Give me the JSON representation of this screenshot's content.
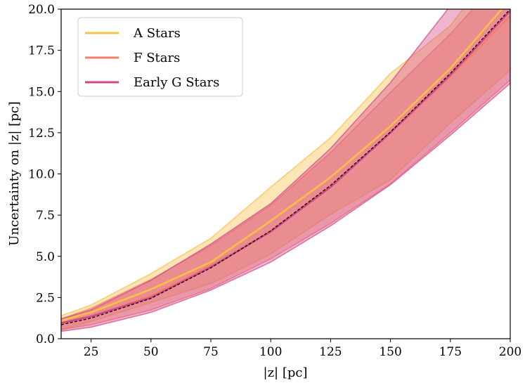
{
  "chart_data": {
    "type": "line",
    "xlabel": "|z| [pc]",
    "ylabel": "Uncertainty on |z| [pc]",
    "xlim": [
      12.5,
      200
    ],
    "ylim": [
      0,
      20
    ],
    "xticks": [
      25,
      50,
      75,
      100,
      125,
      150,
      175,
      200
    ],
    "xtick_labels": [
      "25",
      "50",
      "75",
      "100",
      "125",
      "150",
      "175",
      "200"
    ],
    "yticks": [
      0,
      2.5,
      5,
      7.5,
      10,
      12.5,
      15,
      17.5,
      20
    ],
    "ytick_labels": [
      "0.0",
      "2.5",
      "5.0",
      "7.5",
      "10.0",
      "12.5",
      "15.0",
      "17.5",
      "20.0"
    ],
    "legend_position": "top-left",
    "x": [
      12.5,
      25,
      50,
      75,
      100,
      125,
      150,
      175,
      200
    ],
    "reference_line": {
      "style": "dashed",
      "color": "#000000",
      "values": [
        0.85,
        1.25,
        2.45,
        4.3,
        6.55,
        9.3,
        12.55,
        16.1,
        20.0
      ]
    },
    "series": [
      {
        "name": "A Stars",
        "color": "#f9bf46",
        "values": [
          1.1,
          1.6,
          3.0,
          4.65,
          7.15,
          9.8,
          12.9,
          16.4,
          20.6
        ],
        "upper": [
          1.4,
          2.05,
          3.95,
          6.1,
          9.2,
          12.2,
          16.1,
          19.0,
          23.8
        ],
        "lower": [
          0.55,
          1.05,
          2.2,
          3.35,
          5.15,
          7.55,
          9.65,
          13.1,
          16.3
        ]
      },
      {
        "name": "F Stars",
        "color": "#f0826a",
        "values": [
          0.95,
          1.35,
          2.6,
          4.45,
          6.55,
          9.3,
          12.5,
          15.9,
          19.6
        ],
        "upper": [
          1.2,
          1.85,
          3.6,
          5.65,
          8.1,
          11.3,
          14.95,
          18.5,
          22.5
        ],
        "lower": [
          0.55,
          0.85,
          1.75,
          3.05,
          4.85,
          7.0,
          9.4,
          12.5,
          15.7
        ]
      },
      {
        "name": "Early G Stars",
        "color": "#d1468a",
        "values": [
          0.95,
          1.35,
          2.5,
          4.35,
          6.5,
          9.2,
          12.5,
          16.0,
          19.9
        ],
        "upper": [
          1.2,
          1.75,
          3.55,
          5.75,
          8.2,
          11.55,
          15.55,
          20.2,
          24.0
        ],
        "lower": [
          0.45,
          0.7,
          1.6,
          2.95,
          4.65,
          6.85,
          9.35,
          12.35,
          15.5
        ]
      }
    ]
  }
}
